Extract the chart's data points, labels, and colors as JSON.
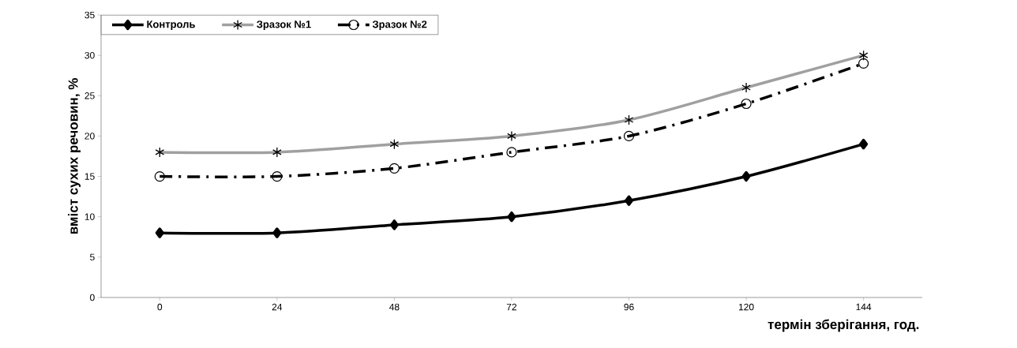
{
  "chart_data": {
    "type": "line",
    "xlabel": "термін зберігання, год.",
    "ylabel": "вміст сухих речовин, %",
    "categories": [
      "0",
      "24",
      "48",
      "72",
      "96",
      "120",
      "144"
    ],
    "series": [
      {
        "name": "Контроль",
        "color": "#000000",
        "marker": "diamond",
        "line_style": "solid",
        "values": [
          8,
          8,
          9,
          10,
          12,
          15,
          19
        ]
      },
      {
        "name": "Зразок №1",
        "color": "#a0a0a0",
        "marker": "cross",
        "line_style": "solid",
        "values": [
          18,
          18,
          19,
          20,
          22,
          26,
          30
        ]
      },
      {
        "name": "Зразок №2",
        "color": "#000000",
        "marker": "circle",
        "line_style": "dashed",
        "values": [
          15,
          15,
          16,
          18,
          20,
          24,
          29
        ]
      }
    ],
    "ylim": [
      0,
      35
    ],
    "yticks": [
      0,
      5,
      10,
      15,
      20,
      25,
      30,
      35
    ],
    "grid": false,
    "legend": "top left"
  }
}
